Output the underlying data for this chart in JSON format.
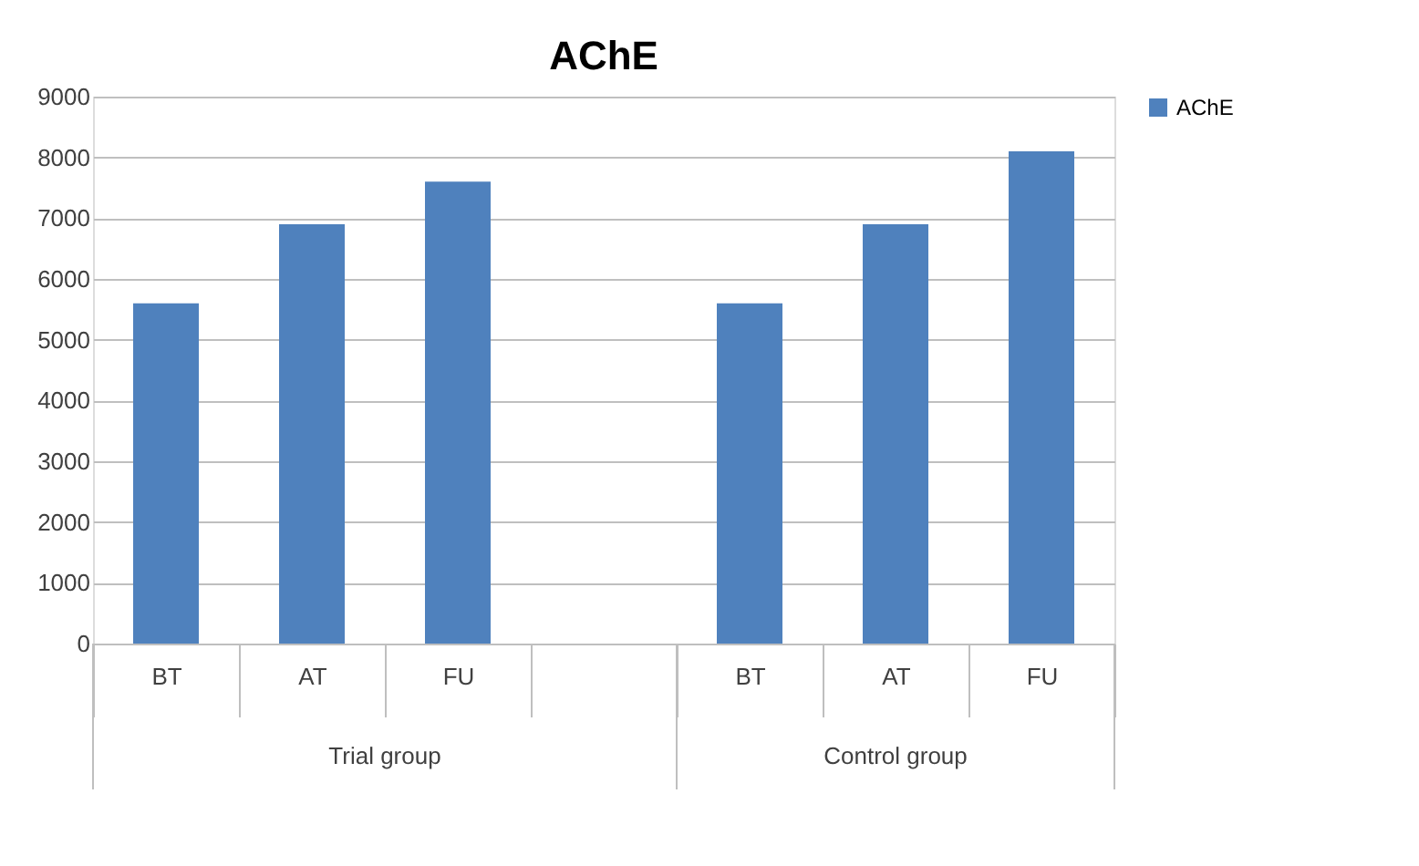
{
  "chart_data": {
    "type": "bar",
    "title": "AChE",
    "categories": [
      "BT",
      "AT",
      "FU",
      null,
      "BT",
      "AT",
      "FU"
    ],
    "series": [
      {
        "name": "AChE",
        "color": "#4f81bd",
        "values": [
          5600,
          6900,
          7600,
          null,
          5600,
          6900,
          8100
        ]
      }
    ],
    "annotations": [
      "Trial group",
      "Control group"
    ],
    "ylim": [
      0,
      9000
    ],
    "yticks": [
      0,
      1000,
      2000,
      3000,
      4000,
      5000,
      6000,
      7000,
      8000,
      9000
    ],
    "grid": "y",
    "legend": "right"
  }
}
